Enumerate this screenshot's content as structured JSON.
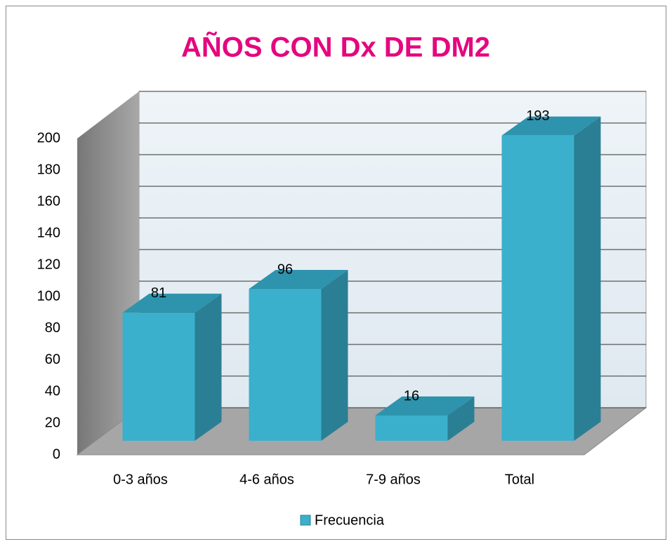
{
  "chart_data": {
    "type": "bar",
    "title": "AÑOS CON Dx DE DM2",
    "categories": [
      "0-3 años",
      "4-6 años",
      "7-9 años",
      "Total"
    ],
    "series": [
      {
        "name": "Frecuencia",
        "color": "#3ab0cc",
        "values": [
          81,
          96,
          16,
          193
        ]
      }
    ],
    "ylim": [
      0,
      200
    ],
    "yticks": [
      0,
      20,
      40,
      60,
      80,
      100,
      120,
      140,
      160,
      180,
      200
    ],
    "grid": true
  }
}
